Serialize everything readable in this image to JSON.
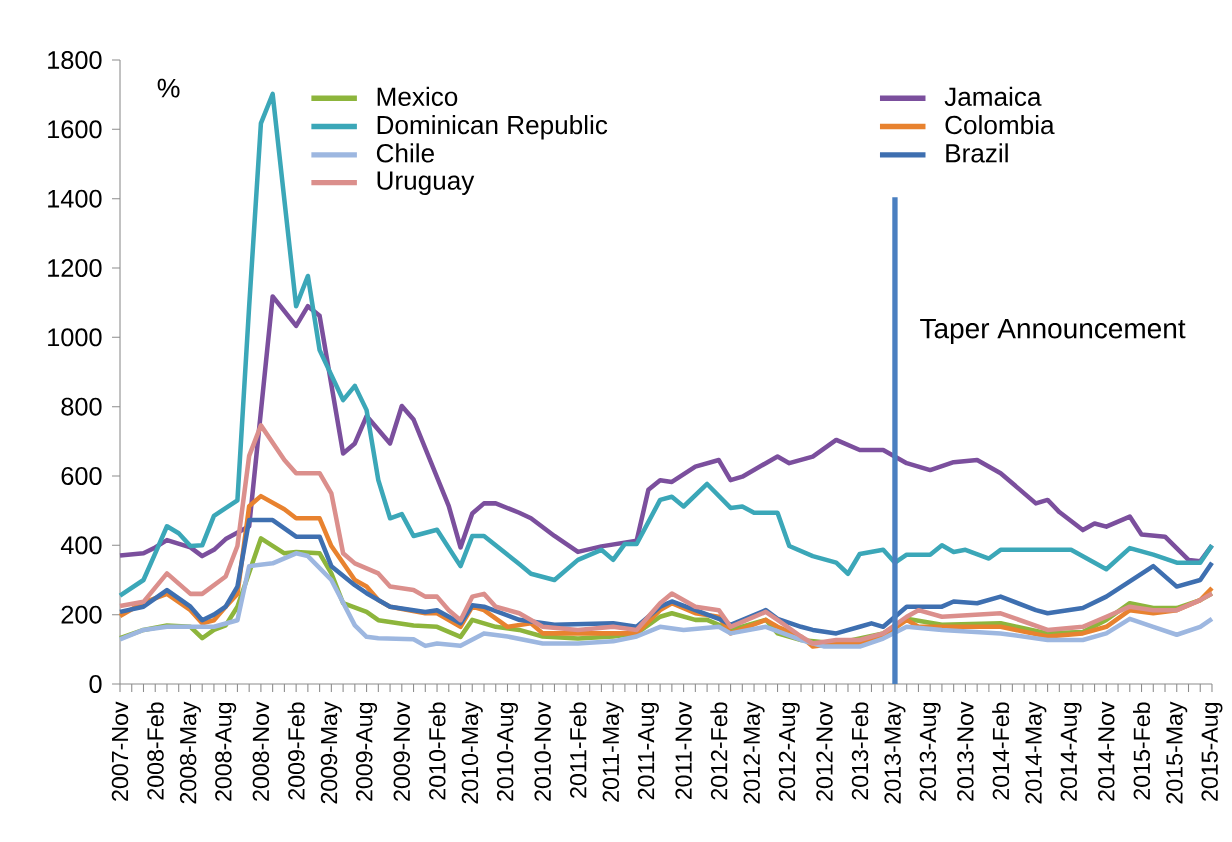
{
  "chart_data": {
    "type": "line",
    "ylabel": "%",
    "legend": "top",
    "xlim": [
      "2007-11",
      "2015-08"
    ],
    "xticks": [
      {
        "value": "2007-11",
        "label": "2007-Nov"
      },
      {
        "value": "2008-02",
        "label": "2008-Feb"
      },
      {
        "value": "2008-05",
        "label": "2008-May"
      },
      {
        "value": "2008-08",
        "label": "2008-Aug"
      },
      {
        "value": "2008-11",
        "label": "2008-Nov"
      },
      {
        "value": "2009-02",
        "label": "2009-Feb"
      },
      {
        "value": "2009-05",
        "label": "2009-May"
      },
      {
        "value": "2009-08",
        "label": "2009-Aug"
      },
      {
        "value": "2009-11",
        "label": "2009-Nov"
      },
      {
        "value": "2010-02",
        "label": "2010-Feb"
      },
      {
        "value": "2010-05",
        "label": "2010-May"
      },
      {
        "value": "2010-08",
        "label": "2010-Aug"
      },
      {
        "value": "2010-11",
        "label": "2010-Nov"
      },
      {
        "value": "2011-02",
        "label": "2011-Feb"
      },
      {
        "value": "2011-05",
        "label": "2011-May"
      },
      {
        "value": "2011-08",
        "label": "2011-Aug"
      },
      {
        "value": "2011-11",
        "label": "2011-Nov"
      },
      {
        "value": "2012-02",
        "label": "2012-Feb"
      },
      {
        "value": "2012-05",
        "label": "2012-May"
      },
      {
        "value": "2012-08",
        "label": "2012-Aug"
      },
      {
        "value": "2012-11",
        "label": "2012-Nov"
      },
      {
        "value": "2013-02",
        "label": "2013-Feb"
      },
      {
        "value": "2013-05",
        "label": "2013-May"
      },
      {
        "value": "2013-08",
        "label": "2013-Aug"
      },
      {
        "value": "2013-11",
        "label": "2013-Nov"
      },
      {
        "value": "2014-02",
        "label": "2014-Feb"
      },
      {
        "value": "2014-05",
        "label": "2014-May"
      },
      {
        "value": "2014-08",
        "label": "2014-Aug"
      },
      {
        "value": "2014-11",
        "label": "2014-Nov"
      },
      {
        "value": "2015-02",
        "label": "2015-Feb"
      },
      {
        "value": "2015-05",
        "label": "2015-May"
      },
      {
        "value": "2015-08",
        "label": "2015-Aug"
      }
    ],
    "ylim": [
      0,
      1800
    ],
    "yticks": [
      0,
      200,
      400,
      600,
      800,
      1000,
      1200,
      1400,
      1600,
      1800
    ],
    "ref_lines": [
      {
        "axis": "x",
        "value": "2013-05",
        "label": "Taper Announcement",
        "color": "#4a7fc0"
      }
    ],
    "series": [
      {
        "name": "Mexico",
        "color": "#8db53c",
        "x": [
          "2007-11",
          "2008-01",
          "2008-03",
          "2008-05",
          "2008-06",
          "2008-07",
          "2008-08",
          "2008-09",
          "2008-11",
          "2009-01",
          "2009-02",
          "2009-04",
          "2009-05",
          "2009-06",
          "2009-08",
          "2009-09",
          "2009-12",
          "2010-02",
          "2010-04",
          "2010-05",
          "2010-07",
          "2010-09",
          "2010-11",
          "2011-02",
          "2011-05",
          "2011-07",
          "2011-09",
          "2011-10",
          "2011-12",
          "2012-01",
          "2012-03",
          "2012-06",
          "2012-07",
          "2012-09",
          "2012-12",
          "2013-02",
          "2013-04",
          "2013-06",
          "2013-09",
          "2014-02",
          "2014-06",
          "2014-09",
          "2014-11",
          "2015-01",
          "2015-03",
          "2015-05",
          "2015-07",
          "2015-08"
        ],
        "values": [
          132,
          156,
          169,
          165,
          132,
          156,
          169,
          223,
          420,
          377,
          381,
          377,
          319,
          233,
          208,
          184,
          169,
          165,
          136,
          185,
          165,
          156,
          137,
          131,
          137,
          146,
          194,
          204,
          185,
          185,
          156,
          185,
          146,
          127,
          117,
          131,
          146,
          188,
          171,
          175,
          146,
          150,
          185,
          233,
          219,
          219,
          242,
          261
        ]
      },
      {
        "name": "Jamaica",
        "color": "#7b4f9d",
        "x": [
          "2007-11",
          "2008-01",
          "2008-02",
          "2008-03",
          "2008-05",
          "2008-06",
          "2008-07",
          "2008-08",
          "2008-10",
          "2008-12",
          "2009-02",
          "2009-03",
          "2009-04",
          "2009-06",
          "2009-07",
          "2009-08",
          "2009-10",
          "2009-11",
          "2009-12",
          "2010-03",
          "2010-04",
          "2010-05",
          "2010-06",
          "2010-07",
          "2010-09",
          "2010-10",
          "2010-12",
          "2011-02",
          "2011-04",
          "2011-07",
          "2011-08",
          "2011-09",
          "2011-10",
          "2011-12",
          "2012-02",
          "2012-03",
          "2012-04",
          "2012-06",
          "2012-07",
          "2012-08",
          "2012-10",
          "2012-12",
          "2013-02",
          "2013-04",
          "2013-06",
          "2013-08",
          "2013-10",
          "2013-12",
          "2014-02",
          "2014-05",
          "2014-06",
          "2014-07",
          "2014-09",
          "2014-10",
          "2014-11",
          "2015-01",
          "2015-02",
          "2015-04",
          "2015-06",
          "2015-07",
          "2015-08"
        ],
        "values": [
          371,
          377,
          394,
          415,
          394,
          369,
          387,
          418,
          455,
          1118,
          1033,
          1090,
          1062,
          665,
          694,
          773,
          694,
          802,
          763,
          513,
          394,
          492,
          521,
          521,
          494,
          478,
          427,
          381,
          397,
          413,
          560,
          588,
          583,
          627,
          646,
          588,
          598,
          637,
          656,
          637,
          656,
          704,
          675,
          675,
          637,
          617,
          640,
          646,
          608,
          521,
          531,
          496,
          444,
          463,
          454,
          483,
          431,
          425,
          358,
          354,
          400
        ]
      },
      {
        "name": "Dominican Republic",
        "color": "#3ba7b8",
        "x": [
          "2007-11",
          "2008-01",
          "2008-02",
          "2008-03",
          "2008-04",
          "2008-05",
          "2008-06",
          "2008-07",
          "2008-09",
          "2008-10",
          "2008-11",
          "2008-12",
          "2009-02",
          "2009-03",
          "2009-04",
          "2009-06",
          "2009-07",
          "2009-08",
          "2009-09",
          "2009-10",
          "2009-11",
          "2009-12",
          "2010-02",
          "2010-04",
          "2010-05",
          "2010-06",
          "2010-09",
          "2010-10",
          "2010-12",
          "2011-02",
          "2011-04",
          "2011-05",
          "2011-06",
          "2011-07",
          "2011-09",
          "2011-10",
          "2011-11",
          "2012-01",
          "2012-03",
          "2012-04",
          "2012-05",
          "2012-07",
          "2012-08",
          "2012-10",
          "2012-12",
          "2013-01",
          "2013-02",
          "2013-04",
          "2013-05",
          "2013-06",
          "2013-08",
          "2013-09",
          "2013-10",
          "2013-11",
          "2014-01",
          "2014-02",
          "2014-08",
          "2014-11",
          "2015-01",
          "2015-03",
          "2015-05",
          "2015-07",
          "2015-08"
        ],
        "values": [
          255,
          300,
          377,
          455,
          435,
          398,
          400,
          485,
          530,
          1090,
          1617,
          1702,
          1090,
          1177,
          963,
          819,
          860,
          790,
          588,
          478,
          490,
          427,
          445,
          340,
          427,
          427,
          346,
          318,
          300,
          358,
          387,
          358,
          404,
          404,
          531,
          540,
          512,
          577,
          508,
          512,
          494,
          494,
          398,
          369,
          350,
          318,
          375,
          387,
          350,
          373,
          373,
          400,
          381,
          387,
          362,
          387,
          387,
          331,
          392,
          373,
          350,
          350,
          400
        ]
      },
      {
        "name": "Colombia",
        "color": "#e8822f",
        "x": [
          "2007-11",
          "2008-01",
          "2008-03",
          "2008-05",
          "2008-06",
          "2008-07",
          "2008-08",
          "2008-09",
          "2008-10",
          "2008-11",
          "2009-01",
          "2009-02",
          "2009-04",
          "2009-05",
          "2009-07",
          "2009-08",
          "2009-09",
          "2009-10",
          "2010-01",
          "2010-02",
          "2010-04",
          "2010-05",
          "2010-06",
          "2010-08",
          "2010-10",
          "2010-11",
          "2011-02",
          "2011-05",
          "2011-07",
          "2011-09",
          "2011-10",
          "2011-12",
          "2012-02",
          "2012-03",
          "2012-06",
          "2012-07",
          "2012-09",
          "2012-10",
          "2012-12",
          "2013-02",
          "2013-04",
          "2013-06",
          "2013-07",
          "2014-02",
          "2014-06",
          "2014-09",
          "2014-11",
          "2015-01",
          "2015-03",
          "2015-05",
          "2015-07",
          "2015-08"
        ],
        "values": [
          196,
          235,
          260,
          213,
          175,
          184,
          223,
          260,
          513,
          542,
          504,
          478,
          478,
          398,
          300,
          281,
          242,
          223,
          204,
          204,
          165,
          223,
          213,
          165,
          175,
          146,
          146,
          146,
          146,
          213,
          233,
          204,
          194,
          146,
          185,
          165,
          137,
          108,
          117,
          117,
          137,
          185,
          165,
          165,
          137,
          146,
          165,
          213,
          204,
          213,
          242,
          277
        ]
      },
      {
        "name": "Chile",
        "color": "#9db7e0",
        "x": [
          "2007-11",
          "2008-01",
          "2008-03",
          "2008-06",
          "2008-07",
          "2008-09",
          "2008-10",
          "2008-12",
          "2009-02",
          "2009-03",
          "2009-05",
          "2009-07",
          "2009-08",
          "2009-09",
          "2009-12",
          "2010-01",
          "2010-02",
          "2010-04",
          "2010-06",
          "2010-08",
          "2010-11",
          "2011-02",
          "2011-05",
          "2011-07",
          "2011-09",
          "2011-11",
          "2012-02",
          "2012-03",
          "2012-06",
          "2012-09",
          "2012-11",
          "2013-02",
          "2013-04",
          "2013-06",
          "2013-09",
          "2014-02",
          "2014-06",
          "2014-09",
          "2014-11",
          "2015-01",
          "2015-03",
          "2015-05",
          "2015-07",
          "2015-08"
        ],
        "values": [
          129,
          156,
          165,
          165,
          165,
          184,
          340,
          348,
          377,
          369,
          300,
          169,
          136,
          132,
          129,
          110,
          117,
          110,
          146,
          137,
          117,
          117,
          123,
          137,
          165,
          156,
          165,
          146,
          165,
          127,
          108,
          108,
          131,
          165,
          156,
          146,
          127,
          127,
          146,
          188,
          165,
          142,
          165,
          188
        ]
      },
      {
        "name": "Brazil",
        "color": "#3e6fb0",
        "x": [
          "2007-11",
          "2008-01",
          "2008-03",
          "2008-05",
          "2008-06",
          "2008-07",
          "2008-08",
          "2008-09",
          "2008-10",
          "2008-12",
          "2009-02",
          "2009-04",
          "2009-05",
          "2009-07",
          "2009-08",
          "2009-10",
          "2010-01",
          "2010-02",
          "2010-04",
          "2010-05",
          "2010-06",
          "2010-09",
          "2010-12",
          "2011-05",
          "2011-07",
          "2011-09",
          "2011-10",
          "2011-12",
          "2012-02",
          "2012-03",
          "2012-06",
          "2012-07",
          "2012-09",
          "2012-10",
          "2012-12",
          "2013-02",
          "2013-03",
          "2013-04",
          "2013-06",
          "2013-09",
          "2013-10",
          "2013-12",
          "2014-02",
          "2014-05",
          "2014-06",
          "2014-09",
          "2014-11",
          "2015-03",
          "2015-05",
          "2015-07",
          "2015-08"
        ],
        "values": [
          208,
          223,
          271,
          223,
          184,
          200,
          223,
          281,
          473,
          473,
          425,
          425,
          340,
          285,
          262,
          223,
          208,
          213,
          175,
          227,
          223,
          185,
          171,
          175,
          165,
          223,
          238,
          213,
          188,
          171,
          213,
          188,
          165,
          156,
          146,
          165,
          175,
          165,
          223,
          223,
          238,
          233,
          252,
          213,
          204,
          219,
          252,
          340,
          281,
          300,
          350
        ]
      },
      {
        "name": "Uruguay",
        "color": "#db8f8c",
        "x": [
          "2007-11",
          "2008-01",
          "2008-03",
          "2008-05",
          "2008-06",
          "2008-08",
          "2008-09",
          "2008-10",
          "2008-11",
          "2009-01",
          "2009-02",
          "2009-04",
          "2009-05",
          "2009-06",
          "2009-07",
          "2009-09",
          "2009-10",
          "2009-12",
          "2010-01",
          "2010-02",
          "2010-03",
          "2010-04",
          "2010-05",
          "2010-06",
          "2010-07",
          "2010-09",
          "2010-11",
          "2011-02",
          "2011-05",
          "2011-07",
          "2011-09",
          "2011-10",
          "2011-12",
          "2012-02",
          "2012-03",
          "2012-06",
          "2012-07",
          "2012-09",
          "2012-10",
          "2012-12",
          "2013-02",
          "2013-04",
          "2013-06",
          "2013-07",
          "2013-09",
          "2014-02",
          "2014-06",
          "2014-09",
          "2014-11",
          "2015-01",
          "2015-03",
          "2015-05",
          "2015-07",
          "2015-08"
        ],
        "values": [
          225,
          237,
          319,
          260,
          260,
          310,
          398,
          658,
          746,
          646,
          608,
          608,
          550,
          377,
          348,
          319,
          281,
          271,
          252,
          252,
          213,
          184,
          252,
          260,
          223,
          204,
          165,
          156,
          165,
          156,
          233,
          261,
          223,
          213,
          165,
          208,
          185,
          137,
          117,
          127,
          127,
          146,
          194,
          213,
          194,
          204,
          156,
          165,
          194,
          223,
          213,
          213,
          242,
          261
        ]
      }
    ]
  }
}
